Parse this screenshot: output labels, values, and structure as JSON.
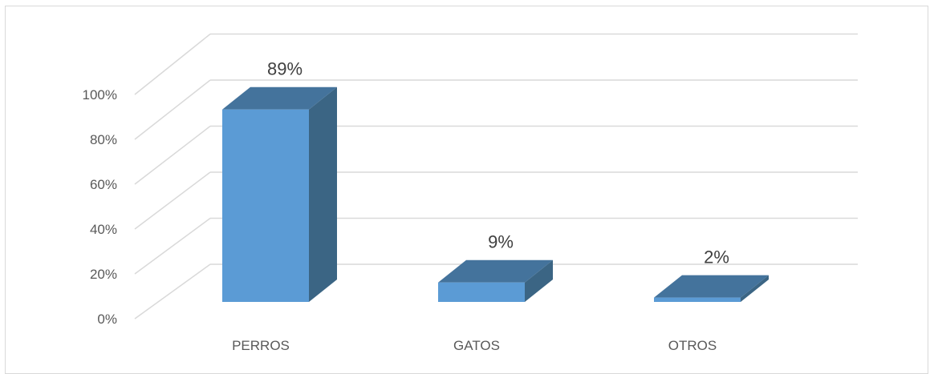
{
  "chart_data": {
    "type": "bar",
    "style": "3d-column",
    "categories": [
      "PERROS",
      "GATOS",
      "OTROS"
    ],
    "values": [
      89,
      9,
      2
    ],
    "data_labels": [
      "89%",
      "9%",
      "2%"
    ],
    "y_ticks": [
      "0%",
      "20%",
      "40%",
      "60%",
      "80%",
      "100%"
    ],
    "ylim": [
      0,
      100
    ],
    "grid": true,
    "legend": "none"
  },
  "colors": {
    "bar_front": "#5b9bd5",
    "bar_side": "#3b6584",
    "bar_top": "#44739c",
    "gridline": "#d9d9d9",
    "text": "#595959"
  }
}
